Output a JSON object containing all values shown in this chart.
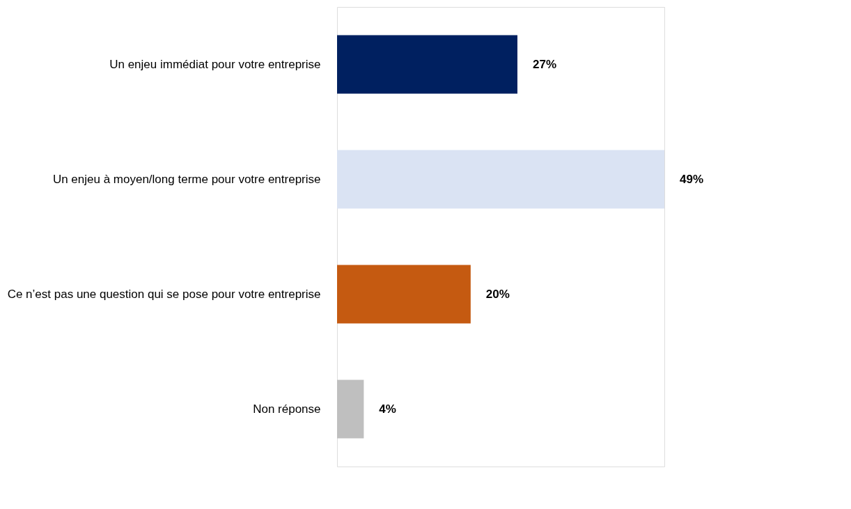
{
  "chart_data": {
    "type": "bar",
    "orientation": "horizontal",
    "categories": [
      "Un enjeu immédiat pour votre entreprise",
      "Un enjeu à moyen/long terme pour votre entreprise",
      "Ce n’est pas une question qui se pose pour votre entreprise",
      "Non réponse"
    ],
    "values": [
      27,
      49,
      20,
      4
    ],
    "colors": [
      "#002060",
      "#dae3f3",
      "#c55a11",
      "#bfbfbf"
    ],
    "value_labels": [
      "27%",
      "49%",
      "20%",
      "4%"
    ],
    "tick_labels": "y",
    "grid": false
  }
}
